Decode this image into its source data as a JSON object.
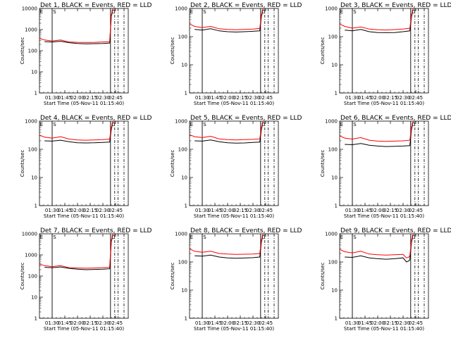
{
  "figure": {
    "title_suffix": " BLACK = Events, RED = LLD",
    "xlabel": "Start Time (05-Nov-11 01:15:40)",
    "ylabel": "Counts/sec"
  },
  "colors": {
    "events": "#000000",
    "lld": "#ff0000",
    "axis": "#000000"
  },
  "chart_data": [
    {
      "type": "line",
      "detector": "Det 1",
      "title": "Det 1, BLACK = Events, RED = LLD",
      "xlim": [
        75,
        180
      ],
      "ylim": [
        1,
        10000
      ],
      "yscale": "log",
      "xticks": [
        90,
        105,
        120,
        135,
        150,
        165
      ],
      "xticklabels": [
        "01:30",
        "01:45",
        "02:00",
        "02:15",
        "02:30",
        "02:45"
      ],
      "yticks": [
        1,
        10,
        100,
        1000,
        10000
      ],
      "yticklabels": [
        "1",
        "10",
        "100",
        "1000",
        "10000"
      ],
      "xlabel": "Start Time (05-Nov-11 01:15:40)",
      "ylabel": "Counts/sec",
      "vlines_solid": [
        90,
        159
      ],
      "vlines_dashed": [
        164,
        168,
        175
      ],
      "markers": [
        "E",
        "S",
        "D"
      ],
      "series": [
        {
          "name": "Events",
          "color": "black",
          "x": [
            81,
            90,
            100,
            110,
            120,
            130,
            140,
            150,
            158,
            160,
            162
          ],
          "y": [
            270,
            260,
            280,
            240,
            220,
            210,
            215,
            220,
            230,
            4000,
            10000
          ]
        },
        {
          "name": "LLD",
          "color": "red",
          "x": [
            75,
            81,
            90,
            100,
            110,
            120,
            130,
            140,
            150,
            158,
            160,
            162
          ],
          "y": [
            380,
            320,
            290,
            320,
            260,
            250,
            245,
            250,
            260,
            270,
            5000,
            10000
          ]
        }
      ]
    },
    {
      "type": "line",
      "detector": "Det 2",
      "title": "Det 2, BLACK = Events, RED = LLD",
      "xlim": [
        75,
        180
      ],
      "ylim": [
        1,
        1000
      ],
      "yscale": "log",
      "xticks": [
        90,
        105,
        120,
        135,
        150,
        165
      ],
      "xticklabels": [
        "01:30",
        "01:45",
        "02:00",
        "02:15",
        "02:30",
        "02:45"
      ],
      "yticks": [
        1,
        10,
        100,
        1000
      ],
      "yticklabels": [
        "1",
        "10",
        "100",
        "1000"
      ],
      "xlabel": "Start Time (05-Nov-11 01:15:40)",
      "ylabel": "Counts/sec",
      "vlines_solid": [
        90,
        159
      ],
      "vlines_dashed": [
        164,
        168,
        175
      ],
      "markers": [
        "E",
        "S",
        "D"
      ],
      "series": [
        {
          "name": "Events",
          "color": "black",
          "x": [
            81,
            90,
            100,
            110,
            120,
            130,
            140,
            150,
            158,
            160,
            162
          ],
          "y": [
            180,
            170,
            190,
            160,
            150,
            145,
            150,
            155,
            160,
            500,
            1000
          ]
        },
        {
          "name": "LLD",
          "color": "red",
          "x": [
            75,
            81,
            90,
            100,
            110,
            120,
            130,
            140,
            150,
            158,
            160,
            162
          ],
          "y": [
            280,
            230,
            210,
            230,
            190,
            180,
            175,
            180,
            185,
            195,
            600,
            1000
          ]
        }
      ]
    },
    {
      "type": "line",
      "detector": "Det 3",
      "title": "Det 3, BLACK = Events, RED = LLD",
      "xlim": [
        75,
        180
      ],
      "ylim": [
        1,
        1000
      ],
      "yscale": "log",
      "xticks": [
        90,
        105,
        120,
        135,
        150,
        165
      ],
      "xticklabels": [
        "01:30",
        "01:45",
        "02:00",
        "02:15",
        "02:30",
        "02:45"
      ],
      "yticks": [
        1,
        10,
        100,
        1000
      ],
      "yticklabels": [
        "1",
        "10",
        "100",
        "1000"
      ],
      "xlabel": "Start Time (05-Nov-11 01:15:40)",
      "ylabel": "Counts/sec",
      "vlines_solid": [
        90,
        159
      ],
      "vlines_dashed": [
        164,
        168,
        175
      ],
      "markers": [
        "E",
        "S",
        "D"
      ],
      "series": [
        {
          "name": "Events",
          "color": "black",
          "x": [
            81,
            90,
            100,
            110,
            120,
            130,
            140,
            150,
            158,
            160,
            162
          ],
          "y": [
            170,
            160,
            180,
            150,
            140,
            138,
            140,
            150,
            160,
            500,
            1000
          ]
        },
        {
          "name": "LLD",
          "color": "red",
          "x": [
            75,
            81,
            90,
            100,
            110,
            120,
            130,
            140,
            150,
            158,
            160,
            162
          ],
          "y": [
            280,
            230,
            200,
            220,
            185,
            175,
            172,
            178,
            185,
            200,
            600,
            1000
          ]
        }
      ]
    },
    {
      "type": "line",
      "detector": "Det 4",
      "title": "Det 4, BLACK = Events, RED = LLD",
      "xlim": [
        75,
        180
      ],
      "ylim": [
        1,
        1000
      ],
      "yscale": "log",
      "xticks": [
        90,
        105,
        120,
        135,
        150,
        165
      ],
      "xticklabels": [
        "01:30",
        "01:45",
        "02:00",
        "02:15",
        "02:30",
        "02:45"
      ],
      "yticks": [
        1,
        10,
        100,
        1000
      ],
      "yticklabels": [
        "1",
        "10",
        "100",
        "1000"
      ],
      "xlabel": "Start Time (05-Nov-11 01:15:40)",
      "ylabel": "Counts/sec",
      "vlines_solid": [
        90,
        159
      ],
      "vlines_dashed": [
        164,
        168,
        175
      ],
      "markers": [
        "E",
        "S",
        "D"
      ],
      "series": [
        {
          "name": "Events",
          "color": "black",
          "x": [
            81,
            90,
            100,
            110,
            120,
            130,
            140,
            150,
            158,
            160,
            162
          ],
          "y": [
            200,
            195,
            210,
            185,
            170,
            168,
            170,
            175,
            180,
            500,
            1000
          ]
        },
        {
          "name": "LLD",
          "color": "red",
          "x": [
            75,
            81,
            90,
            100,
            110,
            120,
            130,
            140,
            150,
            158,
            160,
            162
          ],
          "y": [
            320,
            270,
            250,
            280,
            230,
            215,
            210,
            215,
            220,
            230,
            600,
            1000
          ]
        }
      ]
    },
    {
      "type": "line",
      "detector": "Det 5",
      "title": "Det 5, BLACK = Events, RED = LLD",
      "xlim": [
        75,
        180
      ],
      "ylim": [
        1,
        1000
      ],
      "yscale": "log",
      "xticks": [
        90,
        105,
        120,
        135,
        150,
        165
      ],
      "xticklabels": [
        "01:30",
        "01:45",
        "02:00",
        "02:15",
        "02:30",
        "02:45"
      ],
      "yticks": [
        1,
        10,
        100,
        1000
      ],
      "yticklabels": [
        "1",
        "10",
        "100",
        "1000"
      ],
      "xlabel": "Start Time (05-Nov-11 01:15:40)",
      "ylabel": "Counts/sec",
      "vlines_solid": [
        90,
        159
      ],
      "vlines_dashed": [
        164,
        168,
        175
      ],
      "markers": [
        "E",
        "S",
        "D"
      ],
      "series": [
        {
          "name": "Events",
          "color": "black",
          "x": [
            81,
            90,
            100,
            110,
            120,
            130,
            140,
            150,
            158,
            160,
            162
          ],
          "y": [
            200,
            195,
            215,
            185,
            170,
            165,
            168,
            175,
            180,
            500,
            1000
          ]
        },
        {
          "name": "LLD",
          "color": "red",
          "x": [
            75,
            81,
            90,
            100,
            110,
            120,
            130,
            140,
            150,
            158,
            160,
            162
          ],
          "y": [
            330,
            280,
            260,
            290,
            235,
            220,
            215,
            220,
            225,
            235,
            600,
            1000
          ]
        }
      ]
    },
    {
      "type": "line",
      "detector": "Det 6",
      "title": "Det 6, BLACK = Events, RED = LLD",
      "xlim": [
        75,
        180
      ],
      "ylim": [
        1,
        1000
      ],
      "yscale": "log",
      "xticks": [
        90,
        105,
        120,
        135,
        150,
        165
      ],
      "xticklabels": [
        "01:30",
        "01:45",
        "02:00",
        "02:15",
        "02:30",
        "02:45"
      ],
      "yticks": [
        1,
        10,
        100,
        1000
      ],
      "yticklabels": [
        "1",
        "10",
        "100",
        "1000"
      ],
      "xlabel": "Start Time (05-Nov-11 01:15:40)",
      "ylabel": "Counts/sec",
      "vlines_solid": [
        90,
        159
      ],
      "vlines_dashed": [
        164,
        168,
        175
      ],
      "markers": [
        "E",
        "S",
        "D"
      ],
      "series": [
        {
          "name": "Events",
          "color": "black",
          "x": [
            81,
            90,
            100,
            110,
            120,
            130,
            140,
            150,
            158,
            160,
            162
          ],
          "y": [
            150,
            145,
            160,
            140,
            130,
            125,
            128,
            130,
            135,
            500,
            1000
          ]
        },
        {
          "name": "LLD",
          "color": "red",
          "x": [
            75,
            81,
            90,
            100,
            110,
            120,
            130,
            140,
            150,
            158,
            160,
            162
          ],
          "y": [
            300,
            250,
            230,
            260,
            210,
            195,
            190,
            195,
            200,
            210,
            600,
            1000
          ]
        }
      ]
    },
    {
      "type": "line",
      "detector": "Det 7",
      "title": "Det 7, BLACK = Events, RED = LLD",
      "xlim": [
        75,
        180
      ],
      "ylim": [
        1,
        10000
      ],
      "yscale": "log",
      "xticks": [
        90,
        105,
        120,
        135,
        150,
        165
      ],
      "xticklabels": [
        "01:30",
        "01:45",
        "02:00",
        "02:15",
        "02:30",
        "02:45"
      ],
      "yticks": [
        1,
        10,
        100,
        1000,
        10000
      ],
      "yticklabels": [
        "1",
        "10",
        "100",
        "1000",
        "10000"
      ],
      "xlabel": "Start Time (05-Nov-11 01:15:40)",
      "ylabel": "Counts/sec",
      "vlines_solid": [
        90,
        159
      ],
      "vlines_dashed": [
        164,
        168,
        175
      ],
      "markers": [
        "E",
        "S",
        "D"
      ],
      "series": [
        {
          "name": "Events",
          "color": "black",
          "x": [
            81,
            90,
            100,
            110,
            120,
            130,
            140,
            150,
            158,
            160,
            162
          ],
          "y": [
            260,
            250,
            270,
            230,
            210,
            200,
            205,
            210,
            220,
            4000,
            10000
          ]
        },
        {
          "name": "LLD",
          "color": "red",
          "x": [
            75,
            81,
            90,
            100,
            110,
            120,
            130,
            140,
            150,
            158,
            160,
            162
          ],
          "y": [
            370,
            310,
            280,
            310,
            250,
            240,
            235,
            240,
            250,
            260,
            5000,
            10000
          ]
        }
      ]
    },
    {
      "type": "line",
      "detector": "Det 8",
      "title": "Det 8, BLACK = Events, RED = LLD",
      "xlim": [
        75,
        180
      ],
      "ylim": [
        1,
        1000
      ],
      "yscale": "log",
      "xticks": [
        90,
        105,
        120,
        135,
        150,
        165
      ],
      "xticklabels": [
        "01:30",
        "01:45",
        "02:00",
        "02:15",
        "02:30",
        "02:45"
      ],
      "yticks": [
        1,
        10,
        100,
        1000
      ],
      "yticklabels": [
        "1",
        "10",
        "100",
        "1000"
      ],
      "xlabel": "Start Time (05-Nov-11 01:15:40)",
      "ylabel": "Counts/sec",
      "vlines_solid": [
        90,
        159
      ],
      "vlines_dashed": [
        164,
        168,
        175
      ],
      "markers": [
        "E",
        "S",
        "D"
      ],
      "series": [
        {
          "name": "Events",
          "color": "black",
          "x": [
            81,
            90,
            100,
            110,
            120,
            130,
            140,
            150,
            158,
            160,
            162
          ],
          "y": [
            165,
            160,
            175,
            150,
            140,
            135,
            138,
            142,
            150,
            500,
            1000
          ]
        },
        {
          "name": "LLD",
          "color": "red",
          "x": [
            75,
            81,
            90,
            100,
            110,
            120,
            130,
            140,
            150,
            158,
            160,
            162
          ],
          "y": [
            290,
            240,
            220,
            240,
            200,
            190,
            185,
            188,
            192,
            200,
            600,
            1000
          ]
        }
      ]
    },
    {
      "type": "line",
      "detector": "Det 9",
      "title": "Det 9, BLACK = Events, RED = LLD",
      "xlim": [
        75,
        180
      ],
      "ylim": [
        1,
        1000
      ],
      "yscale": "log",
      "xticks": [
        90,
        105,
        120,
        135,
        150,
        165
      ],
      "xticklabels": [
        "01:30",
        "01:45",
        "02:00",
        "02:15",
        "02:30",
        "02:45"
      ],
      "yticks": [
        1,
        10,
        100,
        1000
      ],
      "yticklabels": [
        "1",
        "10",
        "100",
        "1000"
      ],
      "xlabel": "Start Time (05-Nov-11 01:15:40)",
      "ylabel": "Counts/sec",
      "vlines_solid": [
        90,
        159
      ],
      "vlines_dashed": [
        164,
        168,
        175
      ],
      "markers": [
        "E",
        "S",
        "D"
      ],
      "series": [
        {
          "name": "Events",
          "color": "black",
          "x": [
            81,
            90,
            100,
            110,
            120,
            130,
            140,
            150,
            154,
            157,
            158,
            160,
            162
          ],
          "y": [
            150,
            145,
            165,
            140,
            130,
            125,
            130,
            140,
            100,
            110,
            120,
            500,
            1000
          ]
        },
        {
          "name": "LLD",
          "color": "red",
          "x": [
            75,
            81,
            90,
            100,
            110,
            120,
            130,
            140,
            150,
            154,
            157,
            158,
            160,
            162
          ],
          "y": [
            280,
            230,
            210,
            240,
            190,
            180,
            175,
            180,
            185,
            140,
            150,
            170,
            600,
            1000
          ]
        }
      ]
    }
  ]
}
